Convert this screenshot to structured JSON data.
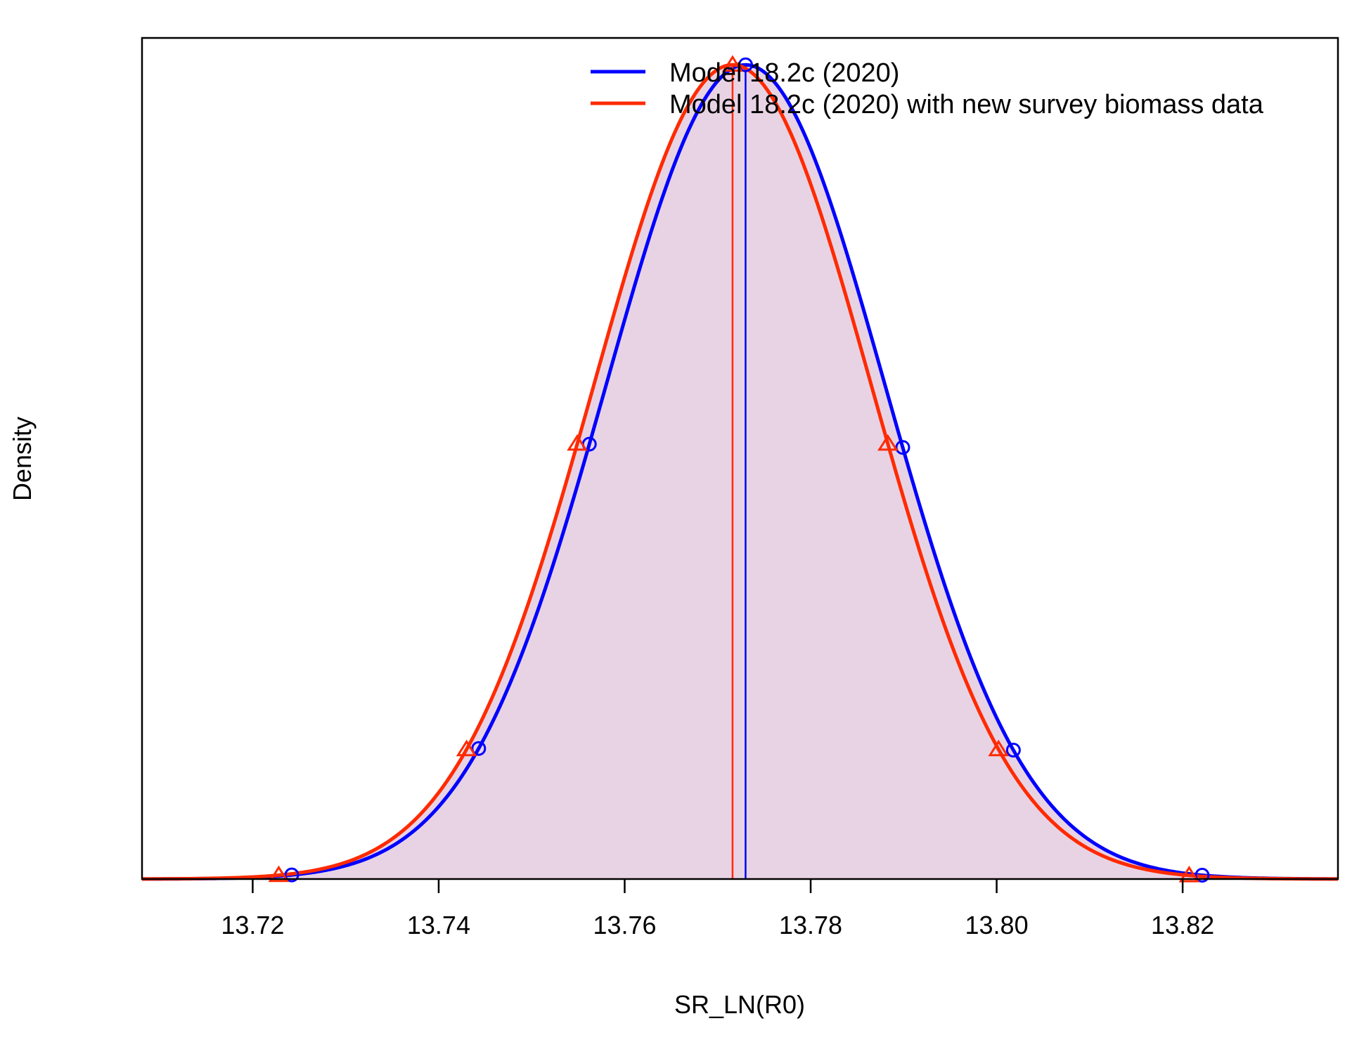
{
  "chart_data": {
    "type": "area",
    "xlabel": "SR_LN(R0)",
    "ylabel": "Density",
    "xlim": [
      13.7081,
      13.8367
    ],
    "ylim": [
      0,
      1.033
    ],
    "x_ticks": [
      13.72,
      13.74,
      13.76,
      13.78,
      13.8,
      13.82
    ],
    "x_tick_labels": [
      "13.72",
      "13.74",
      "13.76",
      "13.78",
      "13.80",
      "13.82"
    ],
    "legend_position": "top-right",
    "grid": false,
    "series": [
      {
        "name": "Model 18.2c (2020)",
        "color": "#0000ff",
        "marker": "circle",
        "mean": 13.773,
        "sd": 0.015,
        "marker_x": [
          13.7242,
          13.7443,
          13.7562,
          13.7899,
          13.8018,
          13.8221
        ],
        "ci_x": [
          13.7242,
          13.8221
        ],
        "fill_color": "#e8d3e5",
        "tail_color": "#d5b1cf",
        "band_color": "#ccc3eb"
      },
      {
        "name": "Model 18.2c (2020) with new survey biomass data",
        "color": "#ff2a00",
        "marker": "triangle",
        "mean": 13.7716,
        "sd": 0.01492,
        "marker_x": [
          13.7228,
          13.743,
          13.7549,
          13.7883,
          13.8002,
          13.8207
        ],
        "ci_x": [
          13.7228,
          13.8207
        ],
        "fill_color": "#e8d3e5",
        "tail_color": "#d5b1cf",
        "band_color": "#efc6cf"
      }
    ]
  }
}
